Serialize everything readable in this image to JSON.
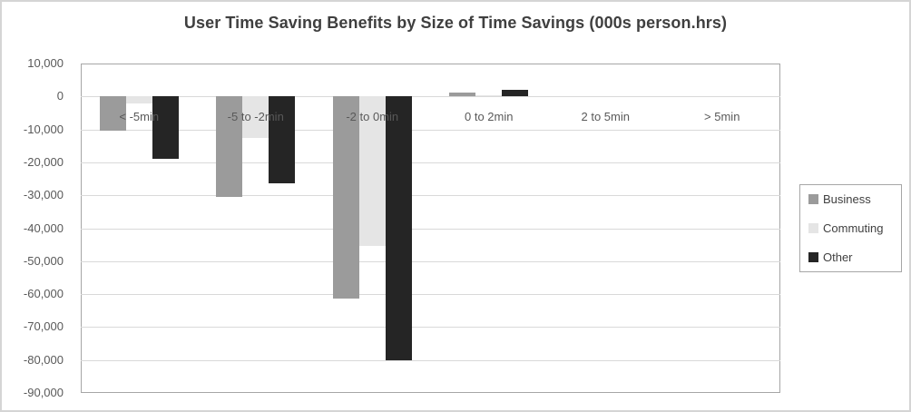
{
  "chart_data": {
    "type": "bar",
    "title": "User Time Saving Benefits by Size of Time Savings (000s person.hrs)",
    "categories": [
      "< -5min",
      "-5 to -2min",
      "-2 to 0min",
      "0 to 2min",
      "2 to 5min",
      "> 5min"
    ],
    "series": [
      {
        "name": "Business",
        "color": "#9b9b9b",
        "values": [
          -10400,
          -30400,
          -61300,
          1200,
          0,
          0
        ]
      },
      {
        "name": "Commuting",
        "color": "#e5e5e5",
        "values": [
          -2200,
          -12700,
          -45500,
          400,
          0,
          0
        ]
      },
      {
        "name": "Other",
        "color": "#252525",
        "values": [
          -18900,
          -26400,
          -80200,
          2000,
          0,
          0
        ]
      }
    ],
    "xlabel": "",
    "ylabel": "",
    "ylim": [
      -90000,
      10000
    ],
    "grid": true,
    "legend_position": "right",
    "yticks": [
      {
        "label": "10,000",
        "value": 10000
      },
      {
        "label": "0",
        "value": 0
      },
      {
        "label": "-10,000",
        "value": -10000
      },
      {
        "label": "-20,000",
        "value": -20000
      },
      {
        "label": "-30,000",
        "value": -30000
      },
      {
        "label": "-40,000",
        "value": -40000
      },
      {
        "label": "-50,000",
        "value": -50000
      },
      {
        "label": "-60,000",
        "value": -60000
      },
      {
        "label": "-70,000",
        "value": -70000
      },
      {
        "label": "-80,000",
        "value": -80000
      },
      {
        "label": "-90,000",
        "value": -90000
      }
    ],
    "palette": {
      "title_text": "#3f3f3f",
      "axis_text": "#595959",
      "gridline": "#d9d9d9",
      "plot_border": "#a6a6a6",
      "outer_border": "#d5d5d5",
      "background": "#ffffff"
    }
  }
}
